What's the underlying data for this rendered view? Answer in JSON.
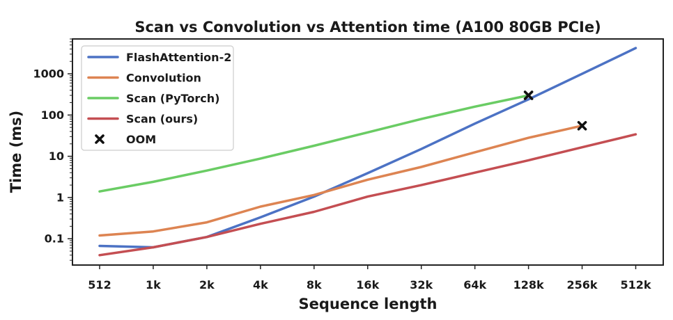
{
  "chart_data": {
    "type": "line",
    "title": "Scan vs Convolution vs Attention time (A100 80GB PCIe)",
    "xlabel": "Sequence length",
    "ylabel": "Time (ms)",
    "x_scale": "log2",
    "y_scale": "log10",
    "categories": [
      "512",
      "1k",
      "2k",
      "4k",
      "8k",
      "16k",
      "32k",
      "64k",
      "128k",
      "256k",
      "512k"
    ],
    "ylim": [
      0.023,
      7000
    ],
    "yticks": [
      0.1,
      1,
      10,
      100,
      1000
    ],
    "ytick_labels": [
      "0.1",
      "1",
      "10",
      "100",
      "1000"
    ],
    "grid": false,
    "legend_position": "top-left",
    "series": [
      {
        "name": "FlashAttention-2",
        "color": "#4c72c4",
        "values": [
          0.067,
          0.062,
          0.11,
          0.33,
          1.05,
          3.9,
          15,
          62,
          240,
          1000,
          4200
        ]
      },
      {
        "name": "Convolution",
        "color": "#dd8452",
        "values": [
          0.12,
          0.15,
          0.25,
          0.6,
          1.15,
          2.7,
          5.5,
          12.5,
          28,
          55,
          null
        ]
      },
      {
        "name": "Scan (PyTorch)",
        "color": "#6acc64",
        "values": [
          1.4,
          2.4,
          4.5,
          8.8,
          18,
          38,
          80,
          160,
          300,
          null,
          null
        ]
      },
      {
        "name": "Scan (ours)",
        "color": "#c44e52",
        "values": [
          0.04,
          0.062,
          0.11,
          0.23,
          0.45,
          1.05,
          2.0,
          4.0,
          8.0,
          16.5,
          34
        ]
      }
    ],
    "oom_markers": {
      "name": "OOM",
      "color": "#111111",
      "points": [
        {
          "x": "128k",
          "y": 300
        },
        {
          "x": "256k",
          "y": 55
        }
      ]
    }
  }
}
